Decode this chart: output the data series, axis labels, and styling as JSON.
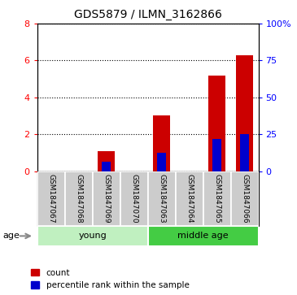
{
  "title": "GDS5879 / ILMN_3162866",
  "samples": [
    "GSM1847067",
    "GSM1847068",
    "GSM1847069",
    "GSM1847070",
    "GSM1847063",
    "GSM1847064",
    "GSM1847065",
    "GSM1847066"
  ],
  "count_values": [
    0,
    0,
    1.1,
    0,
    3.0,
    0,
    5.2,
    6.3
  ],
  "percentile_values": [
    0,
    0,
    6.25,
    0,
    12.5,
    0,
    21.875,
    25.0
  ],
  "groups": [
    {
      "label": "young",
      "start": 0,
      "end": 3,
      "color": "#c0f0c0"
    },
    {
      "label": "middle age",
      "start": 4,
      "end": 7,
      "color": "#44cc44"
    }
  ],
  "ylim_left": [
    0,
    8
  ],
  "ylim_right": [
    0,
    100
  ],
  "yticks_left": [
    0,
    2,
    4,
    6,
    8
  ],
  "yticks_right": [
    0,
    25,
    50,
    75,
    100
  ],
  "ytick_labels_right": [
    "0",
    "25",
    "50",
    "75",
    "100%"
  ],
  "bar_color": "#cc0000",
  "percentile_color": "#0000cc",
  "sample_bg_color": "#cccccc",
  "age_label": "age",
  "legend_count": "count",
  "legend_percentile": "percentile rank within the sample",
  "bar_width": 0.6
}
